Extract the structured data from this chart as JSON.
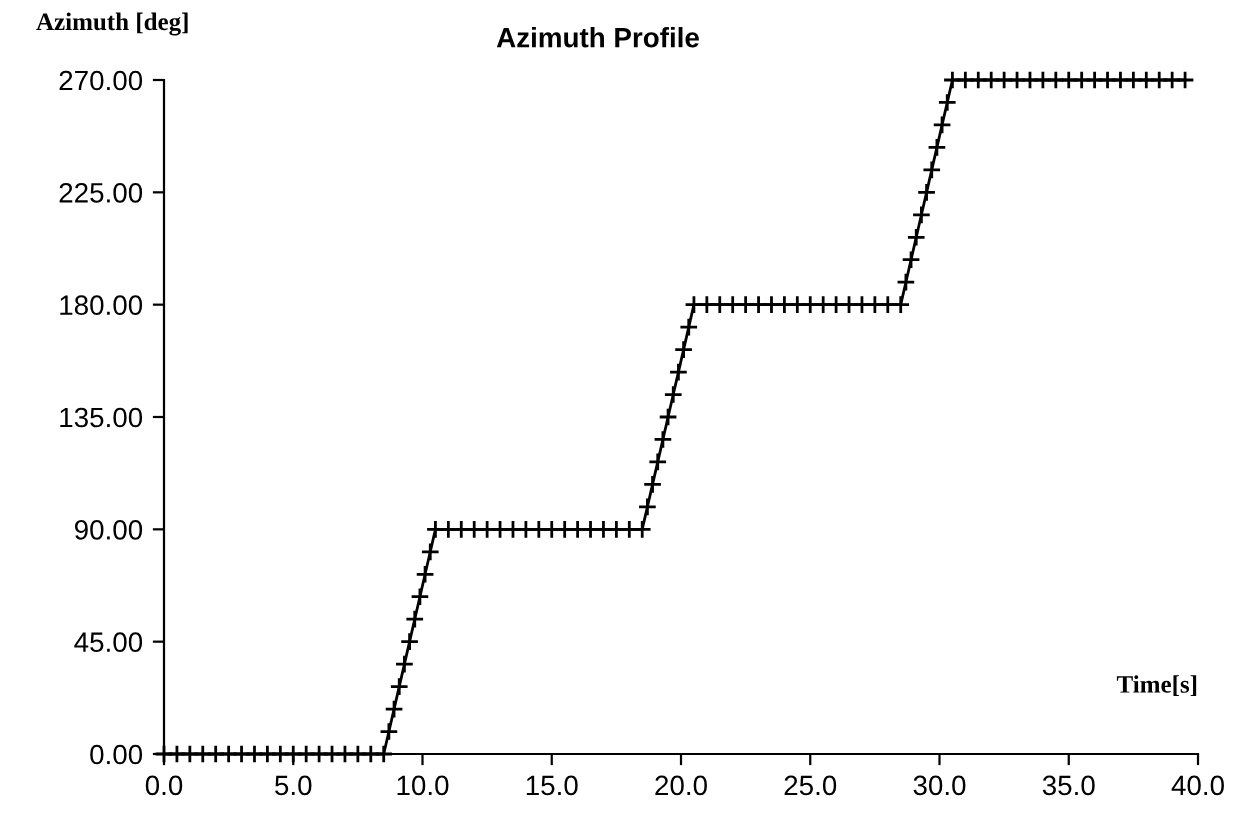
{
  "chart_data": {
    "type": "line",
    "title": "Azimuth Profile",
    "xlabel": "Time[s]",
    "ylabel": "Azimuth [deg]",
    "series": [
      {
        "color": "#000000",
        "x": [
          0,
          0.5,
          1,
          1.5,
          2,
          2.5,
          3,
          3.5,
          4,
          4.5,
          5,
          5.5,
          6,
          6.5,
          7,
          7.5,
          8,
          8.5,
          8.7,
          8.9,
          9.1,
          9.3,
          9.5,
          9.7,
          9.9,
          10.1,
          10.3,
          10.5,
          11,
          11.5,
          12,
          12.5,
          13,
          13.5,
          14,
          14.5,
          15,
          15.5,
          16,
          16.5,
          17,
          17.5,
          18,
          18.5,
          18.7,
          18.9,
          19.1,
          19.3,
          19.5,
          19.7,
          19.9,
          20.1,
          20.3,
          20.5,
          21,
          21.5,
          22,
          22.5,
          23,
          23.5,
          24,
          24.5,
          25,
          25.5,
          26,
          26.5,
          27,
          27.5,
          28,
          28.5,
          28.7,
          28.9,
          29.1,
          29.3,
          29.5,
          29.7,
          29.9,
          30.1,
          30.3,
          30.5,
          31,
          31.5,
          32,
          32.5,
          33,
          33.5,
          34,
          34.5,
          35,
          35.5,
          36,
          36.5,
          37,
          37.5,
          38,
          38.5,
          39,
          39.5
        ],
        "values": [
          0,
          0,
          0,
          0,
          0,
          0,
          0,
          0,
          0,
          0,
          0,
          0,
          0,
          0,
          0,
          0,
          0,
          0,
          9,
          18,
          27,
          36,
          45,
          54,
          63,
          72,
          81,
          90,
          90,
          90,
          90,
          90,
          90,
          90,
          90,
          90,
          90,
          90,
          90,
          90,
          90,
          90,
          90,
          90,
          99,
          108,
          117,
          126,
          135,
          144,
          153,
          162,
          171,
          180,
          180,
          180,
          180,
          180,
          180,
          180,
          180,
          180,
          180,
          180,
          180,
          180,
          180,
          180,
          180,
          180,
          189,
          198,
          207,
          216,
          225,
          234,
          243,
          252,
          261,
          270,
          270,
          270,
          270,
          270,
          270,
          270,
          270,
          270,
          270,
          270,
          270,
          270,
          270,
          270,
          270,
          270,
          270,
          270
        ]
      }
    ],
    "marker": "cross",
    "line_style": "solid",
    "grid": false,
    "legend": false,
    "xlim": [
      0,
      40
    ],
    "xticks": [
      {
        "value": 0,
        "label": "0.0"
      },
      {
        "value": 5,
        "label": "5.0"
      },
      {
        "value": 10,
        "label": "10.0"
      },
      {
        "value": 15,
        "label": "15.0"
      },
      {
        "value": 20,
        "label": "20.0"
      },
      {
        "value": 25,
        "label": "25.0"
      },
      {
        "value": 30,
        "label": "30.0"
      },
      {
        "value": 35,
        "label": "35.0"
      },
      {
        "value": 40,
        "label": "40.0"
      }
    ],
    "ylim": [
      0,
      270
    ],
    "yticks": [
      {
        "value": 0,
        "label": "0.00"
      },
      {
        "value": 45,
        "label": "45.00"
      },
      {
        "value": 90,
        "label": "90.00"
      },
      {
        "value": 135,
        "label": "135.00"
      },
      {
        "value": 180,
        "label": "180.00"
      },
      {
        "value": 225,
        "label": "225.00"
      },
      {
        "value": 270,
        "label": "270.00"
      }
    ]
  }
}
